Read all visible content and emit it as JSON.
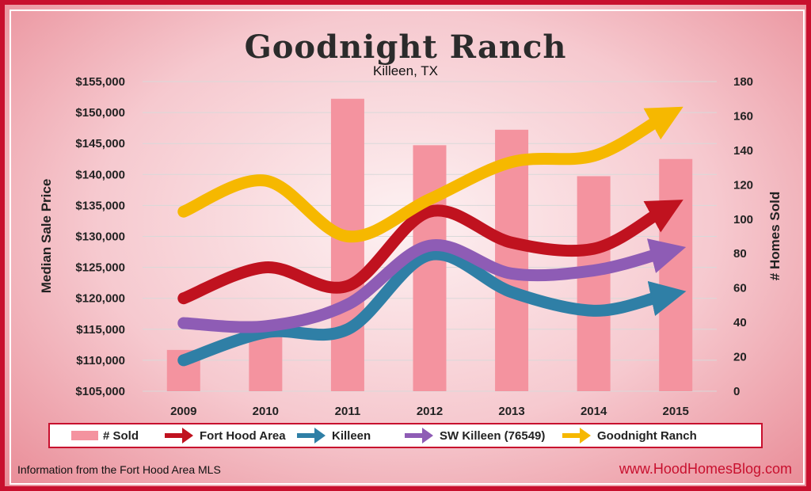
{
  "chart_data": {
    "type": "bar",
    "title": "Goodnight Ranch",
    "subtitle": "Killeen, TX",
    "categories": [
      "2009",
      "2010",
      "2011",
      "2012",
      "2013",
      "2014",
      "2015"
    ],
    "y_left": {
      "label": "Median Sale Price",
      "ticks": [
        "$105,000",
        "$110,000",
        "$115,000",
        "$120,000",
        "$125,000",
        "$130,000",
        "$135,000",
        "$140,000",
        "$145,000",
        "$150,000",
        "$155,000"
      ],
      "range": [
        105000,
        155000
      ]
    },
    "y_right": {
      "label": "# Homes Sold",
      "ticks": [
        "0",
        "20",
        "40",
        "60",
        "80",
        "100",
        "120",
        "140",
        "160",
        "180"
      ],
      "range": [
        0,
        180
      ]
    },
    "bars": {
      "name": "# Sold",
      "color": "#f4939f",
      "values": [
        24,
        38,
        170,
        143,
        152,
        125,
        135
      ]
    },
    "series": [
      {
        "name": "Fort Hood Area",
        "color": "#c0121f",
        "values": [
          120000,
          125000,
          122000,
          134000,
          129000,
          128000,
          134500
        ]
      },
      {
        "name": "Killeen",
        "color": "#2f7fa6",
        "values": [
          110000,
          114500,
          115000,
          127000,
          121000,
          118000,
          120500
        ]
      },
      {
        "name": "SW Killeen (76549)",
        "color": "#8e5cb5",
        "values": [
          116000,
          115500,
          119000,
          128500,
          124000,
          124500,
          127500
        ]
      },
      {
        "name": "Goodnight Ranch",
        "color": "#f6b800",
        "values": [
          134000,
          139000,
          130000,
          136000,
          142000,
          143000,
          149500
        ]
      }
    ],
    "grid": true,
    "legend_position": "bottom"
  },
  "footer": {
    "source": "Information from the Fort Hood Area MLS",
    "website": "www.HoodHomesBlog.com"
  }
}
